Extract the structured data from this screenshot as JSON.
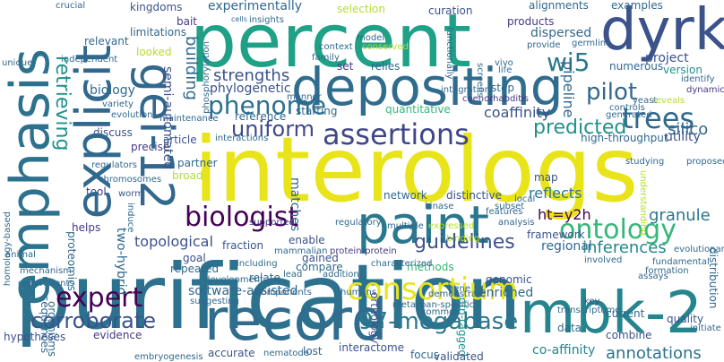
{
  "words": {
    "interologs": "interologs",
    "purification": "purification",
    "percent": "percent",
    "depositing": "depositing",
    "dyrk": "dyrk",
    "record": "record",
    "paint": "paint",
    "mbk2": "mbk-2",
    "emphasis": "emphasis",
    "explicit": "explicit",
    "gei12": "gei-12",
    "assertions": "assertions",
    "biologist": "biologist",
    "consortium": "consortium",
    "ontology": "ontology",
    "trees": "trees",
    "pilot": "pilot",
    "phenome": "phenome",
    "expert": "expert",
    "corroborate": "corroborate",
    "megabase": "97-megabase",
    "guidelines": "guidelines",
    "uniform": "uniform",
    "predicted": "predicted",
    "retrieving": "retrieving",
    "wi5": "wi5",
    "ht": "ht=y2h",
    "inferences": "inferences",
    "annotations": "annotations",
    "strengths": "strengths",
    "topological": "topological",
    "building": "building",
    "reflects": "reflects",
    "granule": "granule",
    "coaffinity": "coaffinity",
    "silico": "silico",
    "selection": "selection",
    "curation": "curation",
    "alignments": "alignments",
    "examples": "examples",
    "experimentally": "experimentally",
    "dispersed": "dispersed",
    "project": "project",
    "softwareassisted": "software-assisted",
    "highthroughput": "high-throughput",
    "utility": "utility",
    "coaffinity2": "co-affinity",
    "biology": "biology",
    "pipeline": "pipeline",
    "semiautomated": "semi-automated",
    "phylogenetic": "phylogenetic",
    "kingdoms": "kingdoms",
    "limitations": "limitations",
    "bait": "bait",
    "looked": "looked",
    "relevant": "relevant",
    "discuss": "discuss",
    "precise": "precise",
    "tool": "tool",
    "helps": "helps",
    "twohybrid": "two-hybrid",
    "broad": "broad",
    "partner": "partner",
    "matches": "matches",
    "enable": "enable",
    "fraction": "fraction",
    "repeated": "repeated",
    "relate": "relate",
    "goal": "goal",
    "gained": "gained",
    "compare": "compare",
    "lost": "lost",
    "accurate": "accurate",
    "evidence": "evidence",
    "hypotheses": "hypotheses",
    "sequences": "sequences",
    "organisms": "organisms",
    "proteomics": "proteomics",
    "framework": "framework",
    "regional": "regional",
    "methods": "methods",
    "enriched": "enriched",
    "genomic": "genomic",
    "data": "data",
    "current": "current",
    "quality": "quality",
    "combine": "combine",
    "orthology": "orthology",
    "gfptagged": "gfp-tagged",
    "validated": "validated",
    "focus": "focus",
    "interactome": "interactome",
    "network": "network",
    "distinctive": "distinctive",
    "map": "map",
    "reference": "reference",
    "article": "article",
    "starting": "starting",
    "step": "step",
    "relies": "relies",
    "set": "set",
    "quantitative": "quantitative",
    "numerous": "numerous",
    "version": "version",
    "products": "products",
    "distribution": "distribution",
    "homologybased": "homology-based",
    "crucial": "crucial",
    "unique": "unique",
    "independent": "independent",
    "variety": "variety",
    "evolution": "evolution",
    "regulators": "regulators",
    "chromosomes": "chromosomes",
    "worm": "worm",
    "mechanism": "mechanism",
    "experiments": "experiments",
    "animal": "animal",
    "induce": "induce",
    "mammalian": "mammalian",
    "including": "including",
    "proteinprotein": "protein-protein",
    "binding": "binding",
    "characterized": "characterized",
    "lead": "lead",
    "addition": "addition",
    "development": "development",
    "humans": "humans",
    "components": "components",
    "suggesting": "suggesting",
    "embryogenesis": "embryogenesis",
    "nematode": "nematode",
    "metazoanspecific": "metazoan-specific",
    "demonstrate": "demonstrate",
    "common": "common",
    "gene": "gene",
    "transcriptome": "transcriptome",
    "assays": "assays",
    "involved": "involved",
    "evolutionary": "evolutionary",
    "fundamental": "fundamental",
    "formation": "formation",
    "key": "key",
    "initiate": "initiate",
    "supported": "supported",
    "regulatory": "regulatory",
    "analysis": "analysis",
    "multiple": "multiple",
    "expressed": "expressed",
    "kinase": "kinase",
    "features": "features",
    "local": "local",
    "subset": "subset",
    "understanding": "understanding",
    "proposed": "proposed",
    "studying": "studying",
    "generated": "generated",
    "controls": "controls",
    "caenorhabditis": "caenorhabditis",
    "integration": "integration",
    "manner": "manner",
    "maintenance": "maintenance",
    "interactions": "interactions",
    "phosphorylation": "phosphorylation",
    "insights": "insights",
    "context": "context",
    "family": "family",
    "cells": "cells",
    "model": "model",
    "conserved": "conserved",
    "functionally": "functionally",
    "screens": "screens",
    "vivo": "vivo",
    "life": "life",
    "provide": "provide",
    "germline": "germline",
    "yeast": "yeast",
    "reveals": "reveals",
    "identify": "identify",
    "dynamics": "dynamics"
  },
  "colors": {
    "background": "#ffffff",
    "yellow": "#e8e419",
    "lime": "#b5de2b",
    "green": "#35b779",
    "teal": "#21918c",
    "blue": "#31688e",
    "indigo": "#443983",
    "purple": "#440154"
  }
}
